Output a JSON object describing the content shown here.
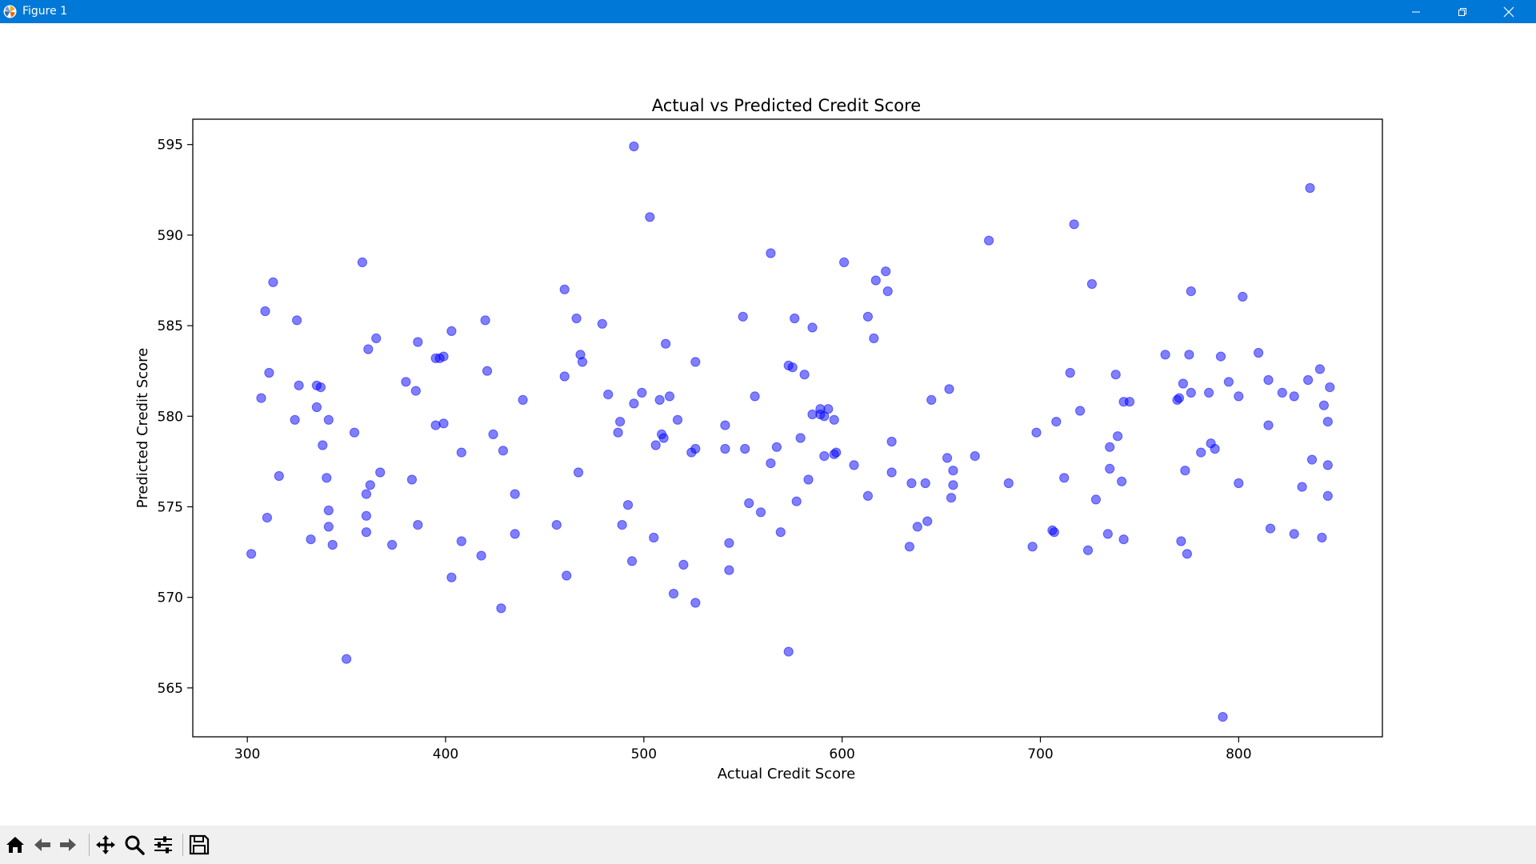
{
  "window": {
    "title": "Figure 1",
    "app_icon": "matplotlib-icon",
    "controls": [
      "minimize-icon",
      "maximize-icon",
      "close-icon"
    ]
  },
  "toolbar": {
    "buttons": [
      "home-icon",
      "back-arrow-icon",
      "forward-arrow-icon",
      "pan-icon",
      "zoom-icon",
      "configure-subplots-icon",
      "save-icon"
    ]
  },
  "chart_data": {
    "type": "scatter",
    "title": "Actual vs Predicted Credit Score",
    "xlabel": "Actual Credit Score",
    "ylabel": "Predicted Credit Score",
    "xlim": [
      272.5,
      872.5
    ],
    "ylim": [
      562.3,
      596.4
    ],
    "xticks": [
      300,
      400,
      500,
      600,
      700,
      800
    ],
    "yticks": [
      565,
      570,
      575,
      580,
      585,
      590,
      595
    ],
    "grid": false,
    "legend": "none",
    "marker_color": "#0000ff",
    "marker_alpha": 0.5,
    "points": [
      [
        302,
        572.4
      ],
      [
        307,
        581
      ],
      [
        309,
        585.8
      ],
      [
        310,
        574.4
      ],
      [
        311,
        582.4
      ],
      [
        313,
        587.4
      ],
      [
        316,
        576.7
      ],
      [
        324,
        579.8
      ],
      [
        325,
        585.3
      ],
      [
        326,
        581.7
      ],
      [
        332,
        573.2
      ],
      [
        335,
        580.5
      ],
      [
        335,
        581.7
      ],
      [
        337,
        581.6
      ],
      [
        338,
        578.4
      ],
      [
        340,
        576.6
      ],
      [
        341,
        574.8
      ],
      [
        341,
        573.9
      ],
      [
        341,
        579.8
      ],
      [
        343,
        572.9
      ],
      [
        350,
        566.6
      ],
      [
        354,
        579.1
      ],
      [
        358,
        588.5
      ],
      [
        360,
        575.7
      ],
      [
        360,
        574.5
      ],
      [
        360,
        573.6
      ],
      [
        361,
        583.7
      ],
      [
        362,
        576.2
      ],
      [
        365,
        584.3
      ],
      [
        367,
        576.9
      ],
      [
        373,
        572.9
      ],
      [
        380,
        581.9
      ],
      [
        383,
        576.5
      ],
      [
        385,
        581.4
      ],
      [
        386,
        584.1
      ],
      [
        386,
        574
      ],
      [
        395,
        579.5
      ],
      [
        395,
        583.2
      ],
      [
        397,
        583.2
      ],
      [
        399,
        583.3
      ],
      [
        399,
        579.6
      ],
      [
        403,
        571.1
      ],
      [
        403,
        584.7
      ],
      [
        408,
        578
      ],
      [
        408,
        573.1
      ],
      [
        418,
        572.3
      ],
      [
        420,
        585.3
      ],
      [
        421,
        582.5
      ],
      [
        424,
        579
      ],
      [
        428,
        569.4
      ],
      [
        429,
        578.1
      ],
      [
        435,
        575.7
      ],
      [
        435,
        573.5
      ],
      [
        439,
        580.9
      ],
      [
        456,
        574
      ],
      [
        460,
        587
      ],
      [
        460,
        582.2
      ],
      [
        461,
        571.2
      ],
      [
        466,
        585.4
      ],
      [
        467,
        576.9
      ],
      [
        468,
        583.4
      ],
      [
        469,
        583
      ],
      [
        479,
        585.1
      ],
      [
        482,
        581.2
      ],
      [
        487,
        579.1
      ],
      [
        488,
        579.7
      ],
      [
        489,
        574
      ],
      [
        492,
        575.1
      ],
      [
        494,
        572
      ],
      [
        495,
        580.7
      ],
      [
        495,
        594.9
      ],
      [
        499,
        581.3
      ],
      [
        503,
        591
      ],
      [
        505,
        573.3
      ],
      [
        506,
        578.4
      ],
      [
        508,
        580.9
      ],
      [
        509,
        579
      ],
      [
        510,
        578.8
      ],
      [
        511,
        584
      ],
      [
        513,
        581.1
      ],
      [
        515,
        570.2
      ],
      [
        517,
        579.8
      ],
      [
        520,
        571.8
      ],
      [
        524,
        578
      ],
      [
        526,
        578.2
      ],
      [
        526,
        569.7
      ],
      [
        526,
        583
      ],
      [
        541,
        579.5
      ],
      [
        541,
        578.2
      ],
      [
        543,
        571.5
      ],
      [
        543,
        573
      ],
      [
        550,
        585.5
      ],
      [
        551,
        578.2
      ],
      [
        553,
        575.2
      ],
      [
        556,
        581.1
      ],
      [
        559,
        574.7
      ],
      [
        564,
        589
      ],
      [
        564,
        577.4
      ],
      [
        567,
        578.3
      ],
      [
        569,
        573.6
      ],
      [
        573,
        567
      ],
      [
        573,
        582.8
      ],
      [
        575,
        582.7
      ],
      [
        576,
        585.4
      ],
      [
        577,
        575.3
      ],
      [
        579,
        578.8
      ],
      [
        581,
        582.3
      ],
      [
        583,
        576.5
      ],
      [
        585,
        580.1
      ],
      [
        585,
        584.9
      ],
      [
        589,
        580.1
      ],
      [
        589,
        580.4
      ],
      [
        591,
        580
      ],
      [
        591,
        577.8
      ],
      [
        593,
        580.4
      ],
      [
        596,
        577.9
      ],
      [
        596,
        579.8
      ],
      [
        597,
        578
      ],
      [
        601,
        588.5
      ],
      [
        606,
        577.3
      ],
      [
        613,
        575.6
      ],
      [
        613,
        585.5
      ],
      [
        616,
        584.3
      ],
      [
        617,
        587.5
      ],
      [
        622,
        588
      ],
      [
        623,
        586.9
      ],
      [
        625,
        578.6
      ],
      [
        625,
        576.9
      ],
      [
        634,
        572.8
      ],
      [
        635,
        576.3
      ],
      [
        638,
        573.9
      ],
      [
        642,
        576.3
      ],
      [
        643,
        574.2
      ],
      [
        645,
        580.9
      ],
      [
        653,
        577.7
      ],
      [
        654,
        581.5
      ],
      [
        655,
        575.5
      ],
      [
        656,
        577
      ],
      [
        656,
        576.2
      ],
      [
        667,
        577.8
      ],
      [
        674,
        589.7
      ],
      [
        684,
        576.3
      ],
      [
        696,
        572.8
      ],
      [
        698,
        579.1
      ],
      [
        706,
        573.7
      ],
      [
        707,
        573.6
      ],
      [
        708,
        579.7
      ],
      [
        712,
        576.6
      ],
      [
        715,
        582.4
      ],
      [
        717,
        590.6
      ],
      [
        720,
        580.3
      ],
      [
        724,
        572.6
      ],
      [
        726,
        587.3
      ],
      [
        728,
        575.4
      ],
      [
        734,
        573.5
      ],
      [
        735,
        578.3
      ],
      [
        735,
        577.1
      ],
      [
        738,
        582.3
      ],
      [
        739,
        578.9
      ],
      [
        741,
        576.4
      ],
      [
        742,
        573.2
      ],
      [
        742,
        580.8
      ],
      [
        745,
        580.8
      ],
      [
        763,
        583.4
      ],
      [
        769,
        580.9
      ],
      [
        770,
        581
      ],
      [
        771,
        573.1
      ],
      [
        772,
        581.8
      ],
      [
        773,
        577
      ],
      [
        774,
        572.4
      ],
      [
        775,
        583.4
      ],
      [
        776,
        586.9
      ],
      [
        776,
        581.3
      ],
      [
        781,
        578
      ],
      [
        785,
        581.3
      ],
      [
        786,
        578.5
      ],
      [
        788,
        578.2
      ],
      [
        791,
        583.3
      ],
      [
        792,
        563.4
      ],
      [
        795,
        581.9
      ],
      [
        800,
        576.3
      ],
      [
        800,
        581.1
      ],
      [
        802,
        586.6
      ],
      [
        810,
        583.5
      ],
      [
        815,
        579.5
      ],
      [
        815,
        582
      ],
      [
        816,
        573.8
      ],
      [
        822,
        581.3
      ],
      [
        828,
        573.5
      ],
      [
        828,
        581.1
      ],
      [
        832,
        576.1
      ],
      [
        835,
        582
      ],
      [
        836,
        592.6
      ],
      [
        837,
        577.6
      ],
      [
        841,
        582.6
      ],
      [
        842,
        573.3
      ],
      [
        843,
        580.6
      ],
      [
        845,
        579.7
      ],
      [
        845,
        577.3
      ],
      [
        845,
        575.6
      ],
      [
        846,
        581.6
      ]
    ]
  }
}
